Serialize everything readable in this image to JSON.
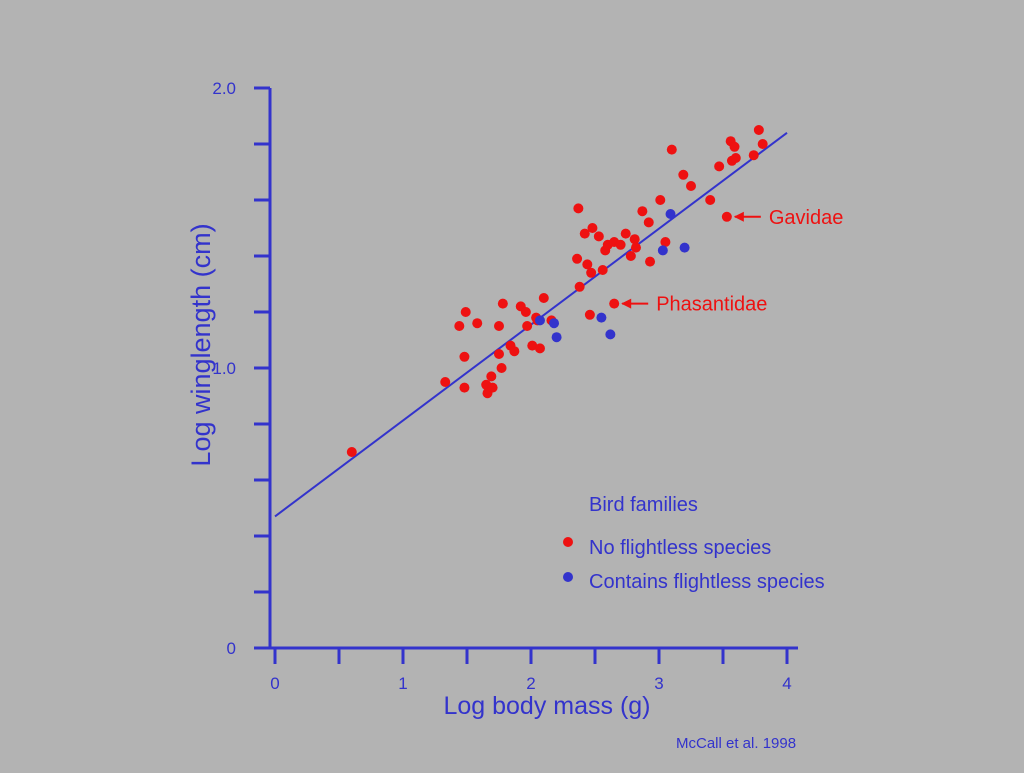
{
  "colors": {
    "background": "#b3b3b3",
    "axis": "#3333cc",
    "no_flightless": "#ee1111",
    "flightless": "#3333cc",
    "annotation": "#ee1111",
    "fit_line": "#3333cc"
  },
  "legend": {
    "title": "Bird families",
    "items": [
      {
        "label": "No flightless species",
        "color": "#ee1111"
      },
      {
        "label": "Contains flightless species",
        "color": "#3333cc"
      }
    ]
  },
  "citation": "McCall et al. 1998",
  "chart_data": {
    "type": "scatter",
    "xlabel": "Log body mass (g)",
    "ylabel": "Log winglength (cm)",
    "xlim": [
      0,
      4
    ],
    "ylim": [
      0,
      2.0
    ],
    "x_ticks": [
      "0",
      "1",
      "2",
      "3",
      "4"
    ],
    "y_ticks": [
      "0",
      "1.0",
      "2.0"
    ],
    "grid": false,
    "fit_line": {
      "x": [
        0,
        4
      ],
      "y": [
        0.47,
        1.84
      ]
    },
    "series": [
      {
        "name": "No flightless species",
        "points": [
          [
            0.6,
            0.7
          ],
          [
            1.33,
            0.95
          ],
          [
            1.44,
            1.15
          ],
          [
            1.48,
            1.04
          ],
          [
            1.48,
            0.93
          ],
          [
            1.49,
            1.2
          ],
          [
            1.58,
            1.16
          ],
          [
            1.65,
            0.94
          ],
          [
            1.66,
            0.91
          ],
          [
            1.69,
            0.97
          ],
          [
            1.7,
            0.93
          ],
          [
            1.75,
            1.05
          ],
          [
            1.75,
            1.15
          ],
          [
            1.77,
            1.0
          ],
          [
            1.78,
            1.23
          ],
          [
            1.84,
            1.08
          ],
          [
            1.87,
            1.06
          ],
          [
            1.92,
            1.22
          ],
          [
            1.96,
            1.2
          ],
          [
            1.97,
            1.15
          ],
          [
            2.01,
            1.08
          ],
          [
            2.04,
            1.18
          ],
          [
            2.05,
            1.17
          ],
          [
            2.07,
            1.07
          ],
          [
            2.1,
            1.25
          ],
          [
            2.16,
            1.17
          ],
          [
            2.36,
            1.39
          ],
          [
            2.37,
            1.57
          ],
          [
            2.38,
            1.29
          ],
          [
            2.42,
            1.48
          ],
          [
            2.44,
            1.37
          ],
          [
            2.46,
            1.19
          ],
          [
            2.47,
            1.34
          ],
          [
            2.48,
            1.5
          ],
          [
            2.53,
            1.47
          ],
          [
            2.56,
            1.35
          ],
          [
            2.58,
            1.42
          ],
          [
            2.6,
            1.44
          ],
          [
            2.65,
            1.45
          ],
          [
            2.7,
            1.44
          ],
          [
            2.74,
            1.48
          ],
          [
            2.78,
            1.4
          ],
          [
            2.81,
            1.46
          ],
          [
            2.82,
            1.43
          ],
          [
            2.87,
            1.56
          ],
          [
            2.92,
            1.52
          ],
          [
            2.93,
            1.38
          ],
          [
            3.01,
            1.6
          ],
          [
            3.05,
            1.45
          ],
          [
            3.1,
            1.78
          ],
          [
            3.19,
            1.69
          ],
          [
            3.25,
            1.65
          ],
          [
            3.4,
            1.6
          ],
          [
            3.47,
            1.72
          ],
          [
            3.56,
            1.81
          ],
          [
            3.57,
            1.74
          ],
          [
            3.59,
            1.79
          ],
          [
            3.6,
            1.75
          ],
          [
            3.74,
            1.76
          ],
          [
            3.78,
            1.85
          ],
          [
            3.81,
            1.8
          ],
          [
            2.65,
            1.23
          ],
          [
            3.53,
            1.54
          ]
        ]
      },
      {
        "name": "Contains flightless species",
        "points": [
          [
            2.07,
            1.17
          ],
          [
            2.18,
            1.16
          ],
          [
            2.2,
            1.11
          ],
          [
            2.55,
            1.18
          ],
          [
            2.62,
            1.12
          ],
          [
            3.03,
            1.42
          ],
          [
            3.09,
            1.55
          ],
          [
            3.2,
            1.43
          ]
        ]
      }
    ],
    "annotations": [
      {
        "text": "Phasantidae",
        "x": 2.65,
        "y": 1.23
      },
      {
        "text": "Gavidae",
        "x": 3.53,
        "y": 1.54
      }
    ]
  }
}
